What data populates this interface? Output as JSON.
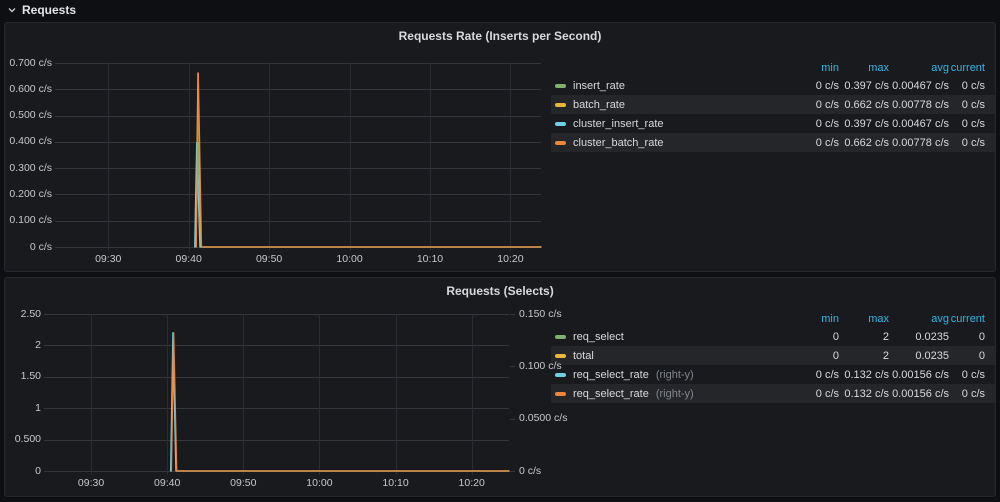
{
  "row_header": {
    "title": "Requests"
  },
  "panels": [
    {
      "title": "Requests Rate (Inserts per Second)",
      "legend": {
        "headers": [
          "min",
          "max",
          "avg",
          "current"
        ],
        "rows": [
          {
            "label": "insert_rate",
            "suffix": "",
            "color": "#7eb26d",
            "min": "0 c/s",
            "max": "0.397 c/s",
            "avg": "0.00467 c/s",
            "current": "0 c/s"
          },
          {
            "label": "batch_rate",
            "suffix": "",
            "color": "#eab839",
            "min": "0 c/s",
            "max": "0.662 c/s",
            "avg": "0.00778 c/s",
            "current": "0 c/s"
          },
          {
            "label": "cluster_insert_rate",
            "suffix": "",
            "color": "#6ed0e0",
            "min": "0 c/s",
            "max": "0.397 c/s",
            "avg": "0.00467 c/s",
            "current": "0 c/s"
          },
          {
            "label": "cluster_batch_rate",
            "suffix": "",
            "color": "#ef843c",
            "min": "0 c/s",
            "max": "0.662 c/s",
            "avg": "0.00778 c/s",
            "current": "0 c/s"
          }
        ]
      }
    },
    {
      "title": "Requests (Selects)",
      "legend": {
        "headers": [
          "min",
          "max",
          "avg",
          "current"
        ],
        "rows": [
          {
            "label": "req_select",
            "suffix": "",
            "color": "#7eb26d",
            "min": "0",
            "max": "2",
            "avg": "0.0235",
            "current": "0"
          },
          {
            "label": "total",
            "suffix": "",
            "color": "#eab839",
            "min": "0",
            "max": "2",
            "avg": "0.0235",
            "current": "0"
          },
          {
            "label": "req_select_rate",
            "suffix": "(right-y)",
            "color": "#6ed0e0",
            "min": "0 c/s",
            "max": "0.132 c/s",
            "avg": "0.00156 c/s",
            "current": "0 c/s"
          },
          {
            "label": "req_select_rate",
            "suffix": "(right-y)",
            "color": "#ef843c",
            "min": "0 c/s",
            "max": "0.132 c/s",
            "avg": "0.00156 c/s",
            "current": "0 c/s"
          }
        ]
      }
    }
  ],
  "chart_data": [
    {
      "type": "line",
      "title": "Requests Rate (Inserts per Second)",
      "x_axis": {
        "unit": "minutes after 09:30",
        "range": [
          -5.5,
          53.8
        ],
        "ticks": [
          {
            "label": "09:30",
            "t": 0
          },
          {
            "label": "09:40",
            "t": 10
          },
          {
            "label": "09:50",
            "t": 20
          },
          {
            "label": "10:00",
            "t": 30
          },
          {
            "label": "10:10",
            "t": 40
          },
          {
            "label": "10:20",
            "t": 50
          }
        ]
      },
      "y_left": {
        "unit": "c/s",
        "range": [
          0,
          0.7
        ],
        "ticks": [
          {
            "label": "0 c/s",
            "v": 0
          },
          {
            "label": "0.100 c/s",
            "v": 0.1
          },
          {
            "label": "0.200 c/s",
            "v": 0.2
          },
          {
            "label": "0.300 c/s",
            "v": 0.3
          },
          {
            "label": "0.400 c/s",
            "v": 0.4
          },
          {
            "label": "0.500 c/s",
            "v": 0.5
          },
          {
            "label": "0.600 c/s",
            "v": 0.6
          },
          {
            "label": "0.700 c/s",
            "v": 0.7
          }
        ]
      },
      "y_right": null,
      "series": [
        {
          "name": "insert_rate",
          "color": "#7eb26d",
          "axis": "left",
          "points": [
            [
              10.9,
              0
            ],
            [
              11.15,
              0.397
            ],
            [
              11.55,
              0
            ],
            [
              53.8,
              0
            ]
          ]
        },
        {
          "name": "batch_rate",
          "color": "#eab839",
          "axis": "left",
          "points": [
            [
              10.9,
              0
            ],
            [
              11.15,
              0.662
            ],
            [
              11.55,
              0
            ],
            [
              53.8,
              0
            ]
          ]
        },
        {
          "name": "cluster_insert_rate",
          "color": "#6ed0e0",
          "axis": "left",
          "points": [
            [
              10.75,
              0
            ],
            [
              11.0,
              0.397
            ],
            [
              11.4,
              0
            ],
            [
              53.8,
              0
            ]
          ]
        },
        {
          "name": "cluster_batch_rate",
          "color": "#ef843c",
          "axis": "left",
          "points": [
            [
              10.95,
              0
            ],
            [
              11.2,
              0.662
            ],
            [
              11.6,
              0
            ],
            [
              53.8,
              0
            ]
          ]
        }
      ]
    },
    {
      "type": "line",
      "title": "Requests (Selects)",
      "x_axis": {
        "unit": "minutes after 09:30",
        "range": [
          -5.0,
          54.9
        ],
        "ticks": [
          {
            "label": "09:30",
            "t": 0
          },
          {
            "label": "09:40",
            "t": 10
          },
          {
            "label": "09:50",
            "t": 20
          },
          {
            "label": "10:00",
            "t": 30
          },
          {
            "label": "10:10",
            "t": 40
          },
          {
            "label": "10:20",
            "t": 50
          }
        ]
      },
      "y_left": {
        "unit": "",
        "range": [
          0,
          2.5
        ],
        "ticks": [
          {
            "label": "0",
            "v": 0
          },
          {
            "label": "0.500",
            "v": 0.5
          },
          {
            "label": "1",
            "v": 1
          },
          {
            "label": "1.50",
            "v": 1.5
          },
          {
            "label": "2",
            "v": 2
          },
          {
            "label": "2.50",
            "v": 2.5
          }
        ]
      },
      "y_right": {
        "unit": "c/s",
        "range": [
          0,
          0.15
        ],
        "ticks": [
          {
            "label": "0 c/s",
            "v": 0
          },
          {
            "label": "0.0500 c/s",
            "v": 0.05
          },
          {
            "label": "0.100 c/s",
            "v": 0.1
          },
          {
            "label": "0.150 c/s",
            "v": 0.15
          }
        ]
      },
      "series": [
        {
          "name": "req_select",
          "color": "#7eb26d",
          "axis": "left",
          "points": [
            [
              10.5,
              0
            ],
            [
              10.8,
              2
            ],
            [
              11.2,
              0
            ],
            [
              54.9,
              0
            ]
          ]
        },
        {
          "name": "total",
          "color": "#eab839",
          "axis": "left",
          "points": [
            [
              10.5,
              0
            ],
            [
              10.8,
              2
            ],
            [
              11.2,
              0
            ],
            [
              54.9,
              0
            ]
          ]
        },
        {
          "name": "req_select_rate",
          "color": "#6ed0e0",
          "axis": "right",
          "points": [
            [
              10.45,
              0
            ],
            [
              10.75,
              0.132
            ],
            [
              11.15,
              0
            ],
            [
              54.9,
              0
            ]
          ]
        },
        {
          "name": "req_select_rate",
          "color": "#ef843c",
          "axis": "right",
          "points": [
            [
              10.55,
              0
            ],
            [
              10.85,
              0.132
            ],
            [
              11.25,
              0
            ],
            [
              54.9,
              0
            ]
          ]
        }
      ]
    }
  ],
  "colors": {
    "legend_header": "#33b5e5",
    "grid_horizontal": "#34363c",
    "grid_vertical": "#2a2c31"
  }
}
